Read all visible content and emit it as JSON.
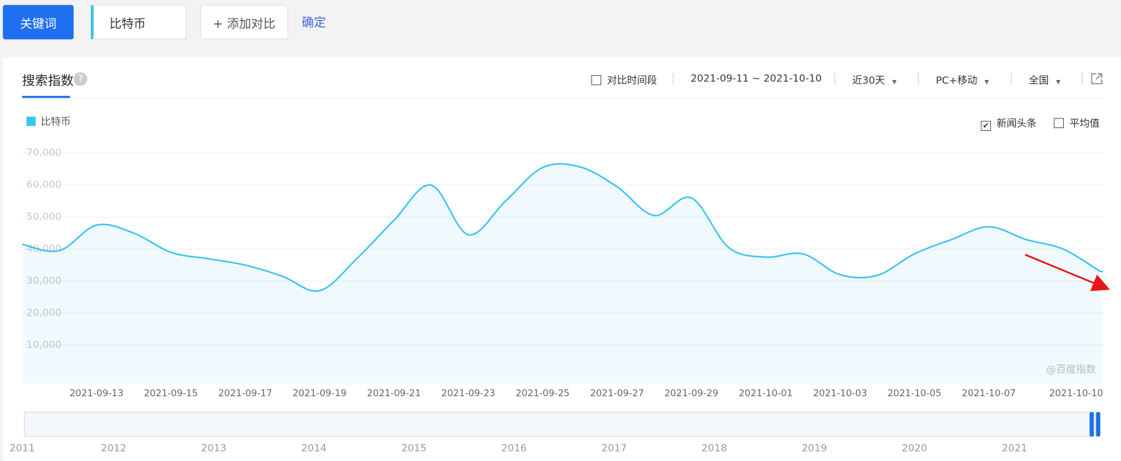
{
  "toolbar": {
    "keyword_button": "关键词",
    "keyword": "比特币",
    "add_compare": "+ 添加对比",
    "confirm": "确定"
  },
  "panel": {
    "tab": "搜索指数",
    "help": "?",
    "compare_period": "对比时间段",
    "date_range": "2021-09-11 ~ 2021-10-10",
    "period": "近30天",
    "device": "PC+移动",
    "region": "全国",
    "options": [
      {
        "label": "新闻头条",
        "checked": true
      },
      {
        "label": "平均值",
        "checked": false
      }
    ],
    "watermark": "@百度指数"
  },
  "chart_data": {
    "type": "line",
    "categories": [
      null,
      null,
      "2021-09-13",
      null,
      "2021-09-15",
      null,
      "2021-09-17",
      null,
      "2021-09-19",
      null,
      "2021-09-21",
      null,
      "2021-09-23",
      null,
      "2021-09-25",
      null,
      "2021-09-27",
      null,
      "2021-09-29",
      null,
      "2021-10-01",
      null,
      "2021-10-03",
      null,
      "2021-10-05",
      null,
      "2021-10-07",
      null,
      null,
      "2021-10-10"
    ],
    "series": [
      {
        "name": "比特币",
        "color": "#3cc4ee",
        "values": [
          41500,
          39500,
          47500,
          45000,
          39000,
          37000,
          35000,
          31500,
          27000,
          37000,
          49000,
          60000,
          44500,
          55000,
          65500,
          65700,
          59500,
          50500,
          56000,
          40500,
          37500,
          38500,
          32000,
          31800,
          38500,
          43000,
          47000,
          43000,
          40000,
          33000
        ]
      }
    ],
    "ylim": [
      0,
      70000
    ],
    "yticks": [
      {
        "value": 10000,
        "label": "10,000"
      },
      {
        "value": 20000,
        "label": "20,000"
      },
      {
        "value": 30000,
        "label": "30,000"
      },
      {
        "value": 40000,
        "label": "40,000"
      },
      {
        "value": 50000,
        "label": "50,000"
      },
      {
        "value": 60000,
        "label": "60,000"
      },
      {
        "value": 70000,
        "label": "70,000"
      }
    ],
    "grid": true
  },
  "timeline": {
    "years": [
      "2011",
      "2012",
      "2013",
      "2014",
      "2015",
      "2016",
      "2017",
      "2018",
      "2019",
      "2020",
      "2021"
    ]
  }
}
